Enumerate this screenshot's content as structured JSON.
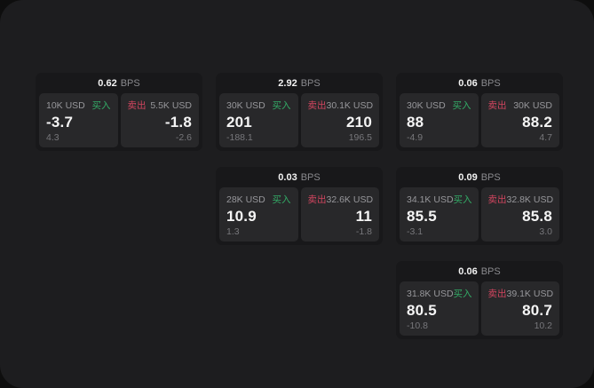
{
  "labels": {
    "bps_suffix": "BPS",
    "buy_label": "买入",
    "sell_label": "卖出"
  },
  "colors": {
    "buy": "#33ab66",
    "sell": "#d2455f",
    "panel_bg": "#1d1d1f",
    "card_bg": "#18181a",
    "subpanel_bg": "#28282a"
  },
  "cards": [
    {
      "col": 1,
      "row": 1,
      "bps": "0.62",
      "buy": {
        "amount": "10K USD",
        "value": "-3.7",
        "sub": "4.3"
      },
      "sell": {
        "amount": "5.5K USD",
        "value": "-1.8",
        "sub": "-2.6"
      }
    },
    {
      "col": 2,
      "row": 1,
      "bps": "2.92",
      "buy": {
        "amount": "30K USD",
        "value": "201",
        "sub": "-188.1"
      },
      "sell": {
        "amount": "30.1K USD",
        "value": "210",
        "sub": "196.5"
      }
    },
    {
      "col": 3,
      "row": 1,
      "bps": "0.06",
      "buy": {
        "amount": "30K USD",
        "value": "88",
        "sub": "-4.9"
      },
      "sell": {
        "amount": "30K USD",
        "value": "88.2",
        "sub": "4.7"
      }
    },
    {
      "col": 2,
      "row": 2,
      "bps": "0.03",
      "buy": {
        "amount": "28K USD",
        "value": "10.9",
        "sub": "1.3"
      },
      "sell": {
        "amount": "32.6K USD",
        "value": "11",
        "sub": "-1.8"
      }
    },
    {
      "col": 3,
      "row": 2,
      "bps": "0.09",
      "buy": {
        "amount": "34.1K USD",
        "value": "85.5",
        "sub": "-3.1"
      },
      "sell": {
        "amount": "32.8K USD",
        "value": "85.8",
        "sub": "3.0"
      }
    },
    {
      "col": 3,
      "row": 3,
      "bps": "0.06",
      "buy": {
        "amount": "31.8K USD",
        "value": "80.5",
        "sub": "-10.8"
      },
      "sell": {
        "amount": "39.1K USD",
        "value": "80.7",
        "sub": "10.2"
      }
    }
  ]
}
